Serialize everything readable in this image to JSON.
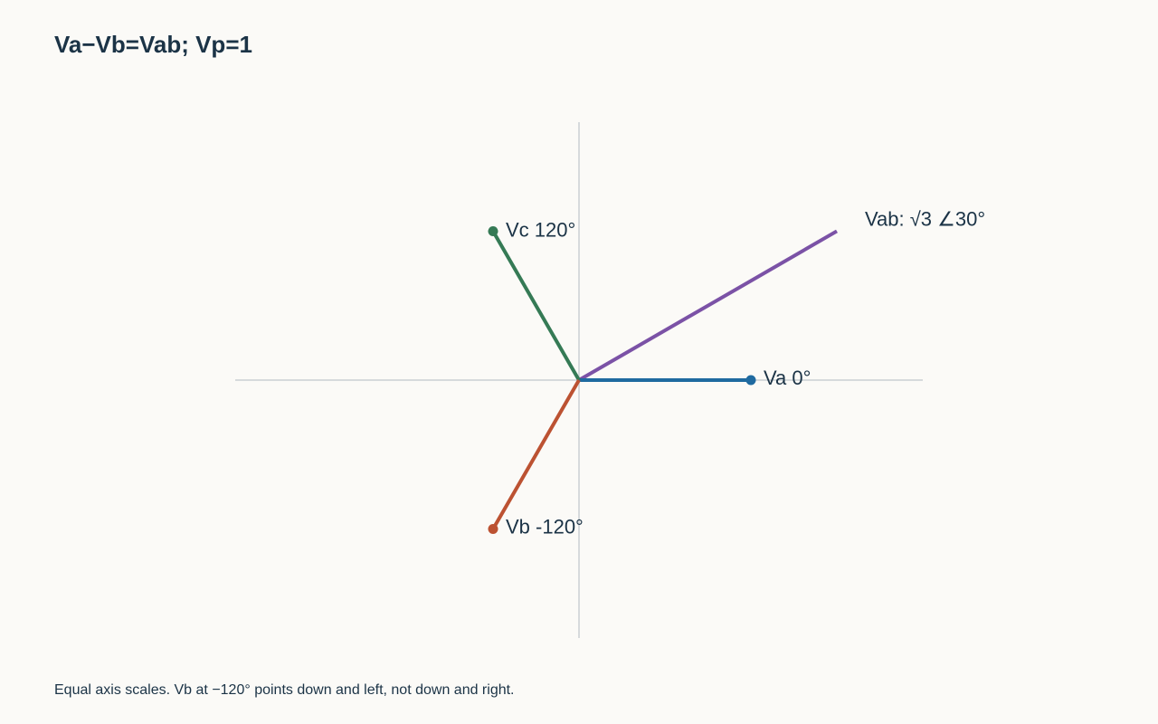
{
  "title": "Va−Vb=Vab; Vp=1",
  "caption": "Equal axis scales. Vb at −120° points down and left, not down and right.",
  "axes": {
    "color": "#c9cfd4",
    "x_range": [
      -2,
      2
    ],
    "y_range": [
      -1.5,
      1.5
    ]
  },
  "phasors": [
    {
      "id": "va",
      "label": "Va 0°",
      "magnitude": 1,
      "angle_deg": 0,
      "color": "#1f6aa0",
      "endpoint_dot": true
    },
    {
      "id": "vc",
      "label": "Vc 120°",
      "magnitude": 1,
      "angle_deg": 120,
      "color": "#357a55",
      "endpoint_dot": true
    },
    {
      "id": "vb",
      "label": "Vb -120°",
      "magnitude": 1,
      "angle_deg": -120,
      "color": "#bc5232",
      "endpoint_dot": true
    },
    {
      "id": "vab",
      "label": "Vab: √3 ∠30°",
      "magnitude": 1.7320508,
      "angle_deg": 30,
      "color": "#7b52a6",
      "endpoint_dot": false
    }
  ]
}
